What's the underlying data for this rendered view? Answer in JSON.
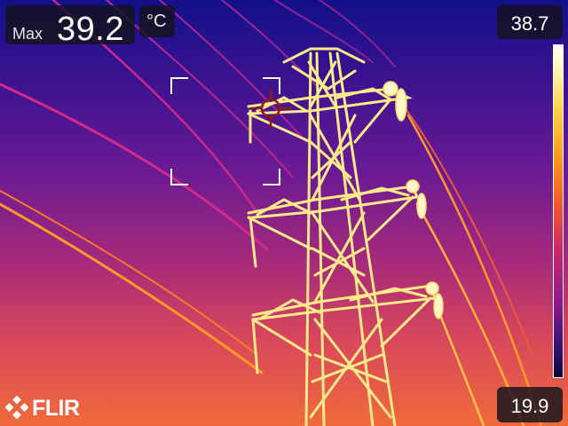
{
  "measurement": {
    "max_label": "Max",
    "max_value": "39.2",
    "unit": "°C"
  },
  "scale": {
    "high": "38.7",
    "low": "19.9"
  },
  "palette": "iron",
  "brand": {
    "logo": "FLIR"
  },
  "colors": {
    "sky_top": "#12108a",
    "sky_bottom": "#f06a3a",
    "hot": "#fff3b0",
    "spot_marker": "#8b1a1a",
    "overlay_box": "#14141c"
  }
}
